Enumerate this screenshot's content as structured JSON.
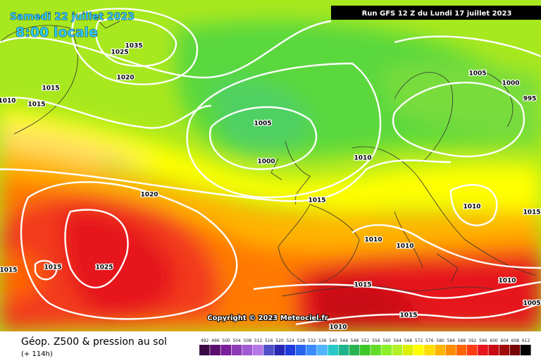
{
  "header": {
    "date": "Samedi 22 juillet 2023",
    "time": "8:00 locale",
    "run": "Run GFS 12 Z du Lundi 17 juillet 2023"
  },
  "copyright": "Copyright © 2023 Meteociel.fr",
  "footer": {
    "title": "Géop. Z500 & pression au sol",
    "lead": "(+ 114h)"
  },
  "isobar_labels": [
    "1035",
    "1025",
    "1020",
    "1015",
    "1015",
    "1010",
    "1005",
    "1000",
    "1010",
    "1015",
    "1020",
    "1005",
    "1000",
    "995",
    "1010",
    "1015",
    "1010",
    "1010",
    "1015",
    "1025",
    "1015",
    "1015",
    "1010",
    "1015",
    "1010",
    "1005"
  ],
  "scale": {
    "labels": [
      492,
      496,
      500,
      504,
      508,
      512,
      516,
      520,
      524,
      528,
      532,
      536,
      540,
      544,
      548,
      552,
      556,
      560,
      564,
      568,
      572,
      576,
      580,
      584,
      588,
      592,
      596,
      600,
      604,
      608,
      612
    ],
    "colors": [
      "#3b0a45",
      "#5a0f6e",
      "#7a1e9a",
      "#8c3cb4",
      "#a05ad2",
      "#b478e6",
      "#5050c8",
      "#2828b4",
      "#1e3cdc",
      "#2864f0",
      "#3c8cff",
      "#50b4ff",
      "#28c8c8",
      "#1eb48c",
      "#28b450",
      "#3cc828",
      "#64dc28",
      "#8cf028",
      "#b4f028",
      "#dcf000",
      "#ffff00",
      "#ffdc00",
      "#ffb400",
      "#ff8c00",
      "#ff6400",
      "#ff3c14",
      "#e6141e",
      "#c80a14",
      "#a00a0a",
      "#780505",
      "#000000"
    ]
  }
}
